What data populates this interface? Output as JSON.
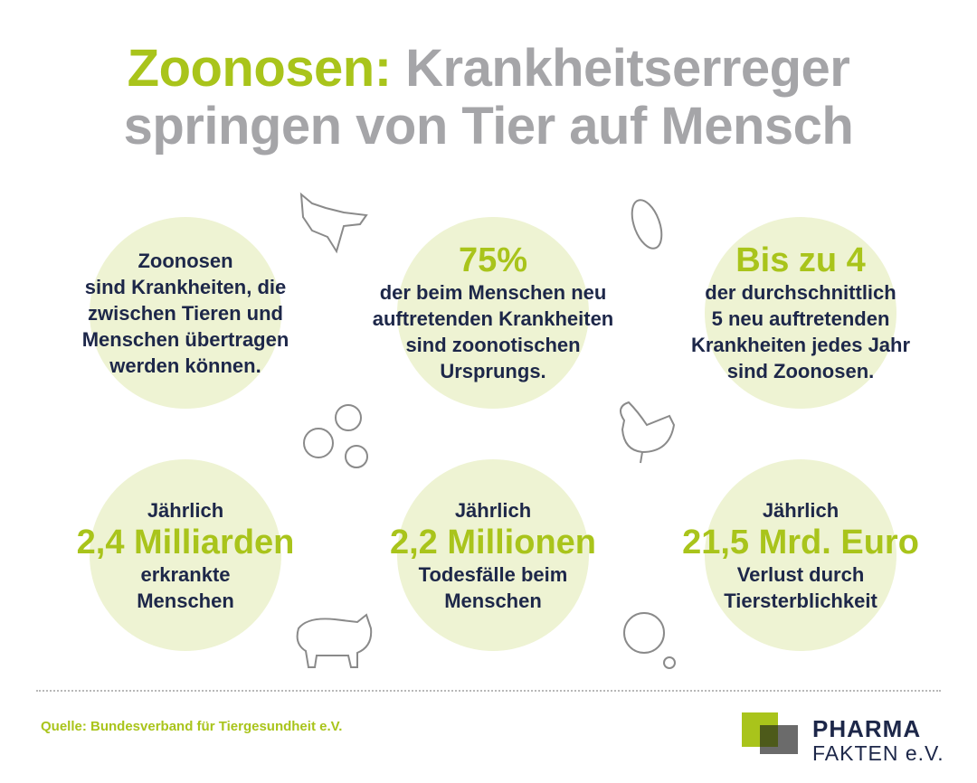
{
  "title": {
    "accent": "Zoonosen:",
    "line1": "Krankheitserreger",
    "line2": "springen von Tier auf Mensch"
  },
  "cells": [
    {
      "lines": [
        "Zoonosen",
        "sind Krankheiten, die",
        "zwischen Tieren und",
        "Menschen übertragen",
        "werden können."
      ]
    },
    {
      "highlight": "75%",
      "lines": [
        "der beim Menschen neu",
        "auftretenden Krankheiten",
        "sind zoonotischen",
        "Ursprungs."
      ]
    },
    {
      "highlight": "Bis zu 4",
      "lines": [
        "der durchschnittlich",
        "5 neu auftretenden",
        "Krankheiten jedes Jahr",
        "sind Zoonosen."
      ]
    },
    {
      "pre": "Jährlich",
      "highlight": "2,4 Milliarden",
      "lines": [
        "erkrankte",
        "Menschen"
      ]
    },
    {
      "pre": "Jährlich",
      "highlight": "2,2 Millionen",
      "lines": [
        "Todesfälle beim",
        "Menschen"
      ]
    },
    {
      "pre": "Jährlich",
      "highlight": "21,5 Mrd. Euro",
      "lines": [
        "Verlust durch",
        "Tiersterblichkeit"
      ]
    }
  ],
  "source": "Quelle: Bundesverband für Tiergesundheit e.V.",
  "logo": {
    "line1": "PHARMA",
    "line2": "FAKTEN e.V."
  }
}
